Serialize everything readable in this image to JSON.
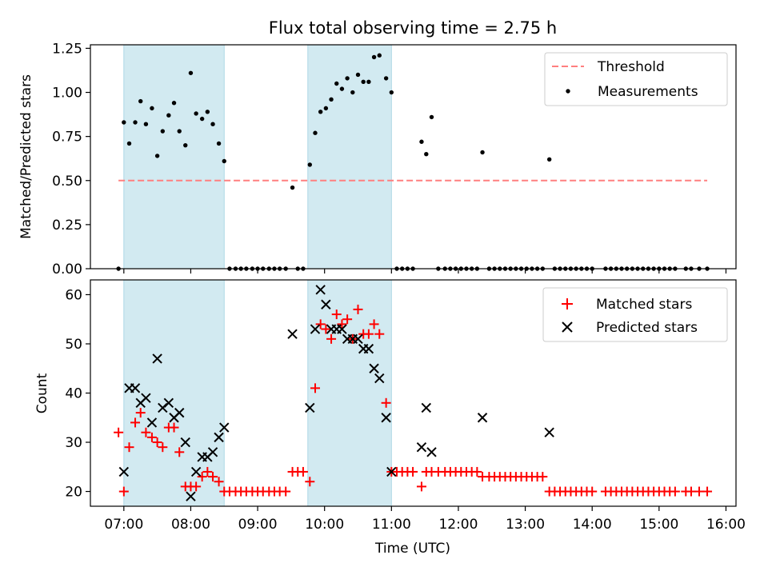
{
  "title": "Flux total observing time = 2.75 h",
  "chart_data": [
    {
      "type": "scatter",
      "panel": "top",
      "title": "Flux total observing time = 2.75 h",
      "ylabel": "Matched/Predicted stars",
      "xlabel": "",
      "xlim": [
        6.5,
        16.15
      ],
      "ylim": [
        0,
        1.27
      ],
      "yticks": [
        0,
        0.25,
        0.5,
        0.75,
        1.0,
        1.25
      ],
      "ytick_labels": [
        "0.00",
        "0.25",
        "0.50",
        "0.75",
        "1.00",
        "1.25"
      ],
      "grid": false,
      "legend": "top-right",
      "shaded_intervals": [
        [
          7.0,
          8.5
        ],
        [
          9.75,
          11.0
        ]
      ],
      "threshold": {
        "name": "Threshold",
        "value": 0.5,
        "x": [
          6.92,
          15.72
        ],
        "color": "#ff7f7f"
      },
      "series": [
        {
          "name": "Measurements",
          "color": "#000000",
          "points": [
            [
              6.92,
              0.0
            ],
            [
              7.0,
              0.83
            ],
            [
              7.08,
              0.71
            ],
            [
              7.17,
              0.83
            ],
            [
              7.25,
              0.95
            ],
            [
              7.33,
              0.82
            ],
            [
              7.42,
              0.91
            ],
            [
              7.5,
              0.64
            ],
            [
              7.58,
              0.78
            ],
            [
              7.67,
              0.87
            ],
            [
              7.75,
              0.94
            ],
            [
              7.83,
              0.78
            ],
            [
              7.92,
              0.7
            ],
            [
              8.0,
              1.11
            ],
            [
              8.08,
              0.88
            ],
            [
              8.17,
              0.85
            ],
            [
              8.25,
              0.89
            ],
            [
              8.33,
              0.82
            ],
            [
              8.42,
              0.71
            ],
            [
              8.5,
              0.61
            ],
            [
              8.58,
              0.0
            ],
            [
              8.67,
              0.0
            ],
            [
              8.75,
              0.0
            ],
            [
              8.83,
              0.0
            ],
            [
              8.92,
              0.0
            ],
            [
              9.0,
              0.0
            ],
            [
              9.08,
              0.0
            ],
            [
              9.17,
              0.0
            ],
            [
              9.25,
              0.0
            ],
            [
              9.33,
              0.0
            ],
            [
              9.42,
              0.0
            ],
            [
              9.52,
              0.46
            ],
            [
              9.6,
              0.0
            ],
            [
              9.68,
              0.0
            ],
            [
              9.78,
              0.59
            ],
            [
              9.86,
              0.77
            ],
            [
              9.94,
              0.89
            ],
            [
              10.02,
              0.91
            ],
            [
              10.1,
              0.96
            ],
            [
              10.18,
              1.05
            ],
            [
              10.26,
              1.02
            ],
            [
              10.34,
              1.08
            ],
            [
              10.42,
              1.0
            ],
            [
              10.5,
              1.1
            ],
            [
              10.58,
              1.06
            ],
            [
              10.66,
              1.06
            ],
            [
              10.74,
              1.2
            ],
            [
              10.82,
              1.21
            ],
            [
              10.92,
              1.08
            ],
            [
              11.0,
              1.0
            ],
            [
              11.08,
              0.0
            ],
            [
              11.16,
              0.0
            ],
            [
              11.24,
              0.0
            ],
            [
              11.32,
              0.0
            ],
            [
              11.45,
              0.72
            ],
            [
              11.52,
              0.65
            ],
            [
              11.6,
              0.86
            ],
            [
              11.7,
              0.0
            ],
            [
              11.8,
              0.0
            ],
            [
              11.88,
              0.0
            ],
            [
              11.96,
              0.0
            ],
            [
              12.04,
              0.0
            ],
            [
              12.12,
              0.0
            ],
            [
              12.2,
              0.0
            ],
            [
              12.28,
              0.0
            ],
            [
              12.36,
              0.66
            ],
            [
              12.46,
              0.0
            ],
            [
              12.54,
              0.0
            ],
            [
              12.62,
              0.0
            ],
            [
              12.7,
              0.0
            ],
            [
              12.78,
              0.0
            ],
            [
              12.86,
              0.0
            ],
            [
              12.94,
              0.0
            ],
            [
              13.02,
              0.0
            ],
            [
              13.1,
              0.0
            ],
            [
              13.18,
              0.0
            ],
            [
              13.26,
              0.0
            ],
            [
              13.36,
              0.62
            ],
            [
              13.44,
              0.0
            ],
            [
              13.52,
              0.0
            ],
            [
              13.6,
              0.0
            ],
            [
              13.68,
              0.0
            ],
            [
              13.76,
              0.0
            ],
            [
              13.84,
              0.0
            ],
            [
              13.92,
              0.0
            ],
            [
              14.0,
              0.0
            ],
            [
              14.2,
              0.0
            ],
            [
              14.28,
              0.0
            ],
            [
              14.36,
              0.0
            ],
            [
              14.44,
              0.0
            ],
            [
              14.52,
              0.0
            ],
            [
              14.6,
              0.0
            ],
            [
              14.68,
              0.0
            ],
            [
              14.76,
              0.0
            ],
            [
              14.84,
              0.0
            ],
            [
              14.92,
              0.0
            ],
            [
              15.0,
              0.0
            ],
            [
              15.08,
              0.0
            ],
            [
              15.16,
              0.0
            ],
            [
              15.24,
              0.0
            ],
            [
              15.4,
              0.0
            ],
            [
              15.48,
              0.0
            ],
            [
              15.6,
              0.0
            ],
            [
              15.72,
              0.0
            ]
          ]
        }
      ]
    },
    {
      "type": "scatter",
      "panel": "bottom",
      "xlabel": "Time (UTC)",
      "ylabel": "Count",
      "xlim": [
        6.5,
        16.15
      ],
      "ylim": [
        17,
        63
      ],
      "xticks": [
        7,
        8,
        9,
        10,
        11,
        12,
        13,
        14,
        15,
        16
      ],
      "xtick_labels": [
        "07:00",
        "08:00",
        "09:00",
        "10:00",
        "11:00",
        "12:00",
        "13:00",
        "14:00",
        "15:00",
        "16:00"
      ],
      "yticks": [
        20,
        30,
        40,
        50,
        60
      ],
      "ytick_labels": [
        "20",
        "30",
        "40",
        "50",
        "60"
      ],
      "grid": false,
      "legend": "top-right",
      "shaded_intervals": [
        [
          7.0,
          8.5
        ],
        [
          9.75,
          11.0
        ]
      ],
      "series": [
        {
          "name": "Matched stars",
          "marker": "plus",
          "color": "#ff0000",
          "points": [
            [
              6.92,
              32
            ],
            [
              7.0,
              20
            ],
            [
              7.08,
              29
            ],
            [
              7.17,
              34
            ],
            [
              7.25,
              36
            ],
            [
              7.33,
              32
            ],
            [
              7.42,
              31
            ],
            [
              7.5,
              30
            ],
            [
              7.58,
              29
            ],
            [
              7.67,
              33
            ],
            [
              7.75,
              33
            ],
            [
              7.83,
              28
            ],
            [
              7.92,
              21
            ],
            [
              8.0,
              21
            ],
            [
              8.08,
              21
            ],
            [
              8.17,
              23
            ],
            [
              8.25,
              24
            ],
            [
              8.33,
              23
            ],
            [
              8.42,
              22
            ],
            [
              8.5,
              20
            ],
            [
              8.58,
              20
            ],
            [
              8.67,
              20
            ],
            [
              8.75,
              20
            ],
            [
              8.83,
              20
            ],
            [
              8.92,
              20
            ],
            [
              9.0,
              20
            ],
            [
              9.08,
              20
            ],
            [
              9.17,
              20
            ],
            [
              9.25,
              20
            ],
            [
              9.33,
              20
            ],
            [
              9.42,
              20
            ],
            [
              9.52,
              24
            ],
            [
              9.6,
              24
            ],
            [
              9.68,
              24
            ],
            [
              9.78,
              22
            ],
            [
              9.86,
              41
            ],
            [
              9.94,
              54
            ],
            [
              10.02,
              53
            ],
            [
              10.1,
              51
            ],
            [
              10.18,
              56
            ],
            [
              10.26,
              54
            ],
            [
              10.34,
              55
            ],
            [
              10.42,
              51
            ],
            [
              10.5,
              57
            ],
            [
              10.58,
              52
            ],
            [
              10.66,
              52
            ],
            [
              10.74,
              54
            ],
            [
              10.82,
              52
            ],
            [
              10.92,
              38
            ],
            [
              11.0,
              24
            ],
            [
              11.08,
              24
            ],
            [
              11.16,
              24
            ],
            [
              11.24,
              24
            ],
            [
              11.32,
              24
            ],
            [
              11.45,
              21
            ],
            [
              11.52,
              24
            ],
            [
              11.6,
              24
            ],
            [
              11.7,
              24
            ],
            [
              11.8,
              24
            ],
            [
              11.88,
              24
            ],
            [
              11.96,
              24
            ],
            [
              12.04,
              24
            ],
            [
              12.12,
              24
            ],
            [
              12.2,
              24
            ],
            [
              12.28,
              24
            ],
            [
              12.36,
              23
            ],
            [
              12.46,
              23
            ],
            [
              12.54,
              23
            ],
            [
              12.62,
              23
            ],
            [
              12.7,
              23
            ],
            [
              12.78,
              23
            ],
            [
              12.86,
              23
            ],
            [
              12.94,
              23
            ],
            [
              13.02,
              23
            ],
            [
              13.1,
              23
            ],
            [
              13.18,
              23
            ],
            [
              13.26,
              23
            ],
            [
              13.36,
              20
            ],
            [
              13.44,
              20
            ],
            [
              13.52,
              20
            ],
            [
              13.6,
              20
            ],
            [
              13.68,
              20
            ],
            [
              13.76,
              20
            ],
            [
              13.84,
              20
            ],
            [
              13.92,
              20
            ],
            [
              14.0,
              20
            ],
            [
              14.2,
              20
            ],
            [
              14.28,
              20
            ],
            [
              14.36,
              20
            ],
            [
              14.44,
              20
            ],
            [
              14.52,
              20
            ],
            [
              14.6,
              20
            ],
            [
              14.68,
              20
            ],
            [
              14.76,
              20
            ],
            [
              14.84,
              20
            ],
            [
              14.92,
              20
            ],
            [
              15.0,
              20
            ],
            [
              15.08,
              20
            ],
            [
              15.16,
              20
            ],
            [
              15.24,
              20
            ],
            [
              15.4,
              20
            ],
            [
              15.48,
              20
            ],
            [
              15.6,
              20
            ],
            [
              15.72,
              20
            ]
          ]
        },
        {
          "name": "Predicted stars",
          "marker": "x",
          "color": "#000000",
          "points": [
            [
              7.0,
              24
            ],
            [
              7.08,
              41
            ],
            [
              7.17,
              41
            ],
            [
              7.25,
              38
            ],
            [
              7.33,
              39
            ],
            [
              7.42,
              34
            ],
            [
              7.5,
              47
            ],
            [
              7.58,
              37
            ],
            [
              7.67,
              38
            ],
            [
              7.75,
              35
            ],
            [
              7.83,
              36
            ],
            [
              7.92,
              30
            ],
            [
              8.0,
              19
            ],
            [
              8.08,
              24
            ],
            [
              8.17,
              27
            ],
            [
              8.25,
              27
            ],
            [
              8.33,
              28
            ],
            [
              8.42,
              31
            ],
            [
              8.5,
              33
            ],
            [
              9.52,
              52
            ],
            [
              9.78,
              37
            ],
            [
              9.86,
              53
            ],
            [
              9.94,
              61
            ],
            [
              10.02,
              58
            ],
            [
              10.1,
              53
            ],
            [
              10.18,
              53
            ],
            [
              10.26,
              53
            ],
            [
              10.34,
              51
            ],
            [
              10.42,
              51
            ],
            [
              10.5,
              51
            ],
            [
              10.58,
              49
            ],
            [
              10.66,
              49
            ],
            [
              10.74,
              45
            ],
            [
              10.82,
              43
            ],
            [
              10.92,
              35
            ],
            [
              11.0,
              24
            ],
            [
              11.45,
              29
            ],
            [
              11.52,
              37
            ],
            [
              11.6,
              28
            ],
            [
              12.36,
              35
            ],
            [
              13.36,
              32
            ]
          ]
        }
      ]
    }
  ]
}
